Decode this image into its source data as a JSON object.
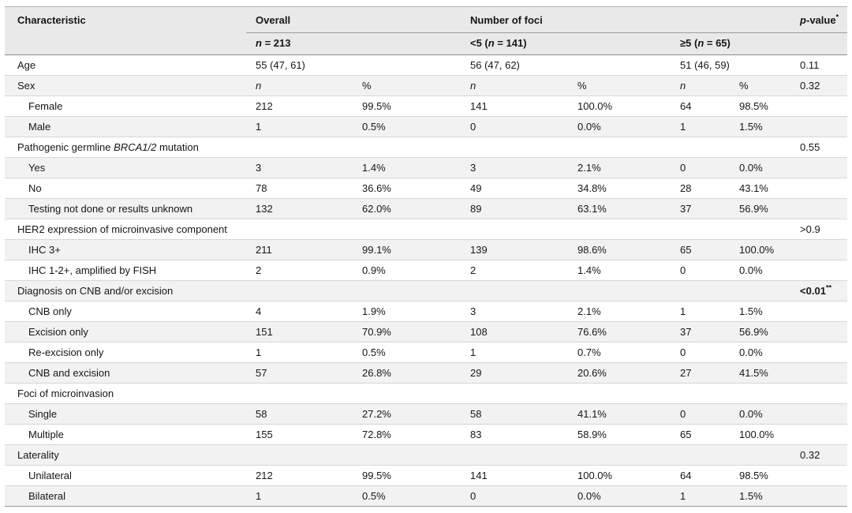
{
  "colors": {
    "header_bg": "#e9e9e9",
    "row_stripe_bg": "#f2f2f2",
    "row_divider": "#d7d7d7",
    "header_divider": "#8a8a8a",
    "text": "#161616"
  },
  "table": {
    "header": {
      "characteristic": "Characteristic",
      "overall": {
        "label": "Overall",
        "n_italic": "n",
        "n_post": " = 213"
      },
      "foci": {
        "label": "Number of foci",
        "lt5": {
          "pre": "<5 (",
          "n": "n",
          "post": " = 141)"
        },
        "ge5": {
          "pre": "≥5 (",
          "n": "n",
          "post": " = 65)"
        }
      },
      "p_value": {
        "italic": "p",
        "rest": "-value",
        "sup": "*"
      }
    },
    "rows": [
      {
        "label": {
          "pre": "Age",
          "it": "",
          "post": ""
        },
        "indent": false,
        "cells": [
          "55 (47, 61)",
          "",
          "56 (47, 62)",
          "",
          "51 (46, 59)",
          ""
        ],
        "cells_italic": false,
        "p": {
          "text": "0.11",
          "bold": false,
          "sup": ""
        }
      },
      {
        "label": {
          "pre": "Sex",
          "it": "",
          "post": ""
        },
        "indent": false,
        "cells": [
          "n",
          "%",
          "n",
          "%",
          "n",
          "%"
        ],
        "cells_italic": true,
        "p": {
          "text": "0.32",
          "bold": false,
          "sup": ""
        }
      },
      {
        "label": {
          "pre": "Female",
          "it": "",
          "post": ""
        },
        "indent": true,
        "cells": [
          "212",
          "99.5%",
          "141",
          "100.0%",
          "64",
          "98.5%"
        ],
        "cells_italic": false,
        "p": {
          "text": "",
          "bold": false,
          "sup": ""
        }
      },
      {
        "label": {
          "pre": "Male",
          "it": "",
          "post": ""
        },
        "indent": true,
        "cells": [
          "1",
          "0.5%",
          "0",
          "0.0%",
          "1",
          "1.5%"
        ],
        "cells_italic": false,
        "p": {
          "text": "",
          "bold": false,
          "sup": ""
        }
      },
      {
        "label": {
          "pre": "Pathogenic germline ",
          "it": "BRCA1/2",
          "post": " mutation"
        },
        "indent": false,
        "cells": [
          "",
          "",
          "",
          "",
          "",
          ""
        ],
        "cells_italic": false,
        "p": {
          "text": "0.55",
          "bold": false,
          "sup": ""
        }
      },
      {
        "label": {
          "pre": "Yes",
          "it": "",
          "post": ""
        },
        "indent": true,
        "cells": [
          "3",
          "1.4%",
          "3",
          "2.1%",
          "0",
          "0.0%"
        ],
        "cells_italic": false,
        "p": {
          "text": "",
          "bold": false,
          "sup": ""
        }
      },
      {
        "label": {
          "pre": "No",
          "it": "",
          "post": ""
        },
        "indent": true,
        "cells": [
          "78",
          "36.6%",
          "49",
          "34.8%",
          "28",
          "43.1%"
        ],
        "cells_italic": false,
        "p": {
          "text": "",
          "bold": false,
          "sup": ""
        }
      },
      {
        "label": {
          "pre": "Testing not done or results unknown",
          "it": "",
          "post": ""
        },
        "indent": true,
        "cells": [
          "132",
          "62.0%",
          "89",
          "63.1%",
          "37",
          "56.9%"
        ],
        "cells_italic": false,
        "p": {
          "text": "",
          "bold": false,
          "sup": ""
        }
      },
      {
        "label": {
          "pre": "HER2 expression of microinvasive component",
          "it": "",
          "post": ""
        },
        "indent": false,
        "cells": [
          "",
          "",
          "",
          "",
          "",
          ""
        ],
        "cells_italic": false,
        "p": {
          "text": ">0.9",
          "bold": false,
          "sup": ""
        }
      },
      {
        "label": {
          "pre": "IHC 3+",
          "it": "",
          "post": ""
        },
        "indent": true,
        "cells": [
          "211",
          "99.1%",
          "139",
          "98.6%",
          "65",
          "100.0%"
        ],
        "cells_italic": false,
        "p": {
          "text": "",
          "bold": false,
          "sup": ""
        }
      },
      {
        "label": {
          "pre": "IHC 1-2+, amplified by FISH",
          "it": "",
          "post": ""
        },
        "indent": true,
        "cells": [
          "2",
          "0.9%",
          "2",
          "1.4%",
          "0",
          "0.0%"
        ],
        "cells_italic": false,
        "p": {
          "text": "",
          "bold": false,
          "sup": ""
        }
      },
      {
        "label": {
          "pre": "Diagnosis on CNB and/or excision",
          "it": "",
          "post": ""
        },
        "indent": false,
        "cells": [
          "",
          "",
          "",
          "",
          "",
          ""
        ],
        "cells_italic": false,
        "p": {
          "text": "<0.01",
          "bold": true,
          "sup": "**"
        }
      },
      {
        "label": {
          "pre": "CNB only",
          "it": "",
          "post": ""
        },
        "indent": true,
        "cells": [
          "4",
          "1.9%",
          "3",
          "2.1%",
          "1",
          "1.5%"
        ],
        "cells_italic": false,
        "p": {
          "text": "",
          "bold": false,
          "sup": ""
        }
      },
      {
        "label": {
          "pre": "Excision only",
          "it": "",
          "post": ""
        },
        "indent": true,
        "cells": [
          "151",
          "70.9%",
          "108",
          "76.6%",
          "37",
          "56.9%"
        ],
        "cells_italic": false,
        "p": {
          "text": "",
          "bold": false,
          "sup": ""
        }
      },
      {
        "label": {
          "pre": "Re-excision only",
          "it": "",
          "post": ""
        },
        "indent": true,
        "cells": [
          "1",
          "0.5%",
          "1",
          "0.7%",
          "0",
          "0.0%"
        ],
        "cells_italic": false,
        "p": {
          "text": "",
          "bold": false,
          "sup": ""
        }
      },
      {
        "label": {
          "pre": "CNB and excision",
          "it": "",
          "post": ""
        },
        "indent": true,
        "cells": [
          "57",
          "26.8%",
          "29",
          "20.6%",
          "27",
          "41.5%"
        ],
        "cells_italic": false,
        "p": {
          "text": "",
          "bold": false,
          "sup": ""
        }
      },
      {
        "label": {
          "pre": "Foci of microinvasion",
          "it": "",
          "post": ""
        },
        "indent": false,
        "cells": [
          "",
          "",
          "",
          "",
          "",
          ""
        ],
        "cells_italic": false,
        "p": {
          "text": "",
          "bold": false,
          "sup": ""
        }
      },
      {
        "label": {
          "pre": "Single",
          "it": "",
          "post": ""
        },
        "indent": true,
        "cells": [
          "58",
          "27.2%",
          "58",
          "41.1%",
          "0",
          "0.0%"
        ],
        "cells_italic": false,
        "p": {
          "text": "",
          "bold": false,
          "sup": ""
        }
      },
      {
        "label": {
          "pre": "Multiple",
          "it": "",
          "post": ""
        },
        "indent": true,
        "cells": [
          "155",
          "72.8%",
          "83",
          "58.9%",
          "65",
          "100.0%"
        ],
        "cells_italic": false,
        "p": {
          "text": "",
          "bold": false,
          "sup": ""
        }
      },
      {
        "label": {
          "pre": "Laterality",
          "it": "",
          "post": ""
        },
        "indent": false,
        "cells": [
          "",
          "",
          "",
          "",
          "",
          ""
        ],
        "cells_italic": false,
        "p": {
          "text": "0.32",
          "bold": false,
          "sup": ""
        }
      },
      {
        "label": {
          "pre": "Unilateral",
          "it": "",
          "post": ""
        },
        "indent": true,
        "cells": [
          "212",
          "99.5%",
          "141",
          "100.0%",
          "64",
          "98.5%"
        ],
        "cells_italic": false,
        "p": {
          "text": "",
          "bold": false,
          "sup": ""
        }
      },
      {
        "label": {
          "pre": "Bilateral",
          "it": "",
          "post": ""
        },
        "indent": true,
        "cells": [
          "1",
          "0.5%",
          "0",
          "0.0%",
          "1",
          "1.5%"
        ],
        "cells_italic": false,
        "p": {
          "text": "",
          "bold": false,
          "sup": ""
        }
      }
    ]
  }
}
